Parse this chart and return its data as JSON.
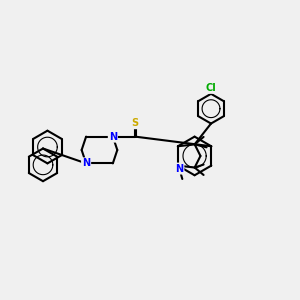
{
  "background_color": "#f0f0f0",
  "bond_color": "#000000",
  "atom_colors": {
    "N": "#0000ff",
    "S": "#ccaa00",
    "Cl": "#00aa00",
    "C": "#000000"
  },
  "title": "",
  "figsize": [
    3.0,
    3.0
  ],
  "dpi": 100
}
